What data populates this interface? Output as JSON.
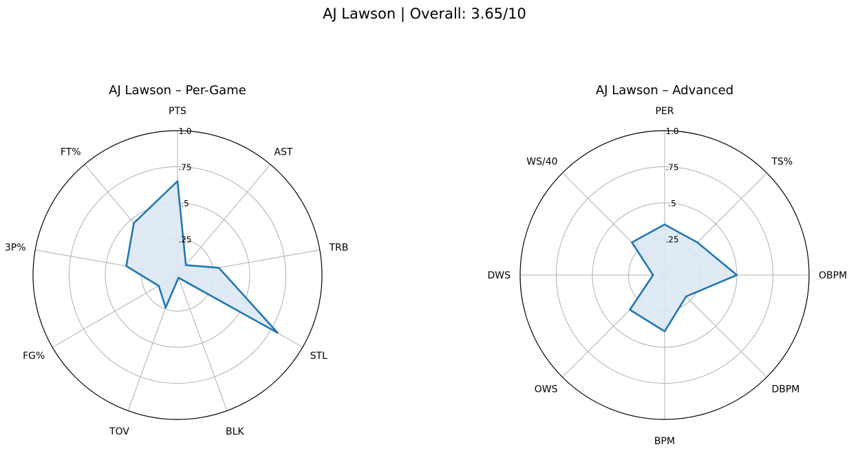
{
  "suptitle": "AJ Lawson | Overall: 3.65/10",
  "chart_data": [
    {
      "type": "radar",
      "title": "AJ Lawson – Per-Game",
      "rlim": [
        0,
        1
      ],
      "r_ticks": [
        0.25,
        0.5,
        0.75,
        1.0
      ],
      "r_tick_labels": [
        ".25",
        ".5",
        ".75",
        "1.0"
      ],
      "grid": true,
      "series": [
        {
          "color": "#1f77b4",
          "fill": "#dce8f3",
          "categories": [
            "PTS",
            "AST",
            "TRB",
            "STL",
            "BLK",
            "TOV",
            "FG%",
            "3P%",
            "FT%"
          ],
          "values": [
            0.65,
            0.09,
            0.29,
            0.8,
            0.02,
            0.24,
            0.15,
            0.36,
            0.47
          ]
        }
      ]
    },
    {
      "type": "radar",
      "title": "AJ Lawson – Advanced",
      "rlim": [
        0,
        1
      ],
      "r_ticks": [
        0.25,
        0.5,
        0.75,
        1.0
      ],
      "r_tick_labels": [
        ".25",
        ".5",
        ".75",
        "1.0"
      ],
      "grid": true,
      "series": [
        {
          "color": "#1f77b4",
          "fill": "#dce8f3",
          "categories": [
            "PER",
            "TS%",
            "OBPM",
            "DBPM",
            "BPM",
            "OWS",
            "DWS",
            "WS/40"
          ],
          "values": [
            0.35,
            0.32,
            0.5,
            0.21,
            0.39,
            0.34,
            0.08,
            0.32
          ]
        }
      ]
    }
  ]
}
